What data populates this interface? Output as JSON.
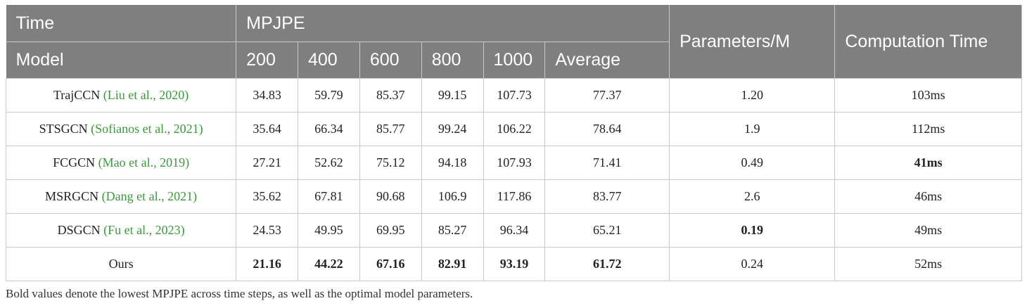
{
  "header": {
    "time_label": "Time",
    "model_label": "Model",
    "mpjpe_label": "MPJPE",
    "time_steps": [
      "200",
      "400",
      "600",
      "800",
      "1000",
      "Average"
    ],
    "params_label": "Parameters/M",
    "comp_time_label": "Computation Time"
  },
  "rows": [
    {
      "model": "TrajCCN",
      "cite": "(Liu et al., 2020)",
      "values": [
        "34.83",
        "59.79",
        "85.37",
        "99.15",
        "107.73",
        "77.37"
      ],
      "params": "1.20",
      "comp_time": "103ms"
    },
    {
      "model": "STSGCN",
      "cite": "(Sofianos et al., 2021)",
      "values": [
        "35.64",
        "66.34",
        "85.77",
        "99.24",
        "106.22",
        "78.64"
      ],
      "params": "1.9",
      "comp_time": "112ms"
    },
    {
      "model": "FCGCN",
      "cite": "(Mao et al., 2019)",
      "values": [
        "27.21",
        "52.62",
        "75.12",
        "94.18",
        "107.93",
        "71.41"
      ],
      "params": "0.49",
      "comp_time": "41ms"
    },
    {
      "model": "MSRGCN",
      "cite": "(Dang et al., 2021)",
      "values": [
        "35.62",
        "67.81",
        "90.68",
        "106.9",
        "117.86",
        "83.77"
      ],
      "params": "2.6",
      "comp_time": "46ms"
    },
    {
      "model": "DSGCN",
      "cite": "(Fu et al., 2023)",
      "values": [
        "24.53",
        "49.95",
        "69.95",
        "85.27",
        "96.34",
        "65.21"
      ],
      "params": "0.19",
      "comp_time": "49ms"
    },
    {
      "model": "Ours",
      "cite": "",
      "values": [
        "21.16",
        "44.22",
        "67.16",
        "82.91",
        "93.19",
        "61.72"
      ],
      "params": "0.24",
      "comp_time": "52ms"
    }
  ],
  "bold_cells": {
    "values": [
      [
        5,
        0
      ],
      [
        5,
        1
      ],
      [
        5,
        2
      ],
      [
        5,
        3
      ],
      [
        5,
        4
      ],
      [
        5,
        5
      ]
    ],
    "params": [
      4
    ],
    "comp_time": [
      2
    ]
  },
  "colors": {
    "header_bg": "#7f7f7f",
    "citation": "#3a9a3a"
  },
  "footnote": "Bold values denote the lowest MPJPE across time steps, as well as the optimal model parameters."
}
